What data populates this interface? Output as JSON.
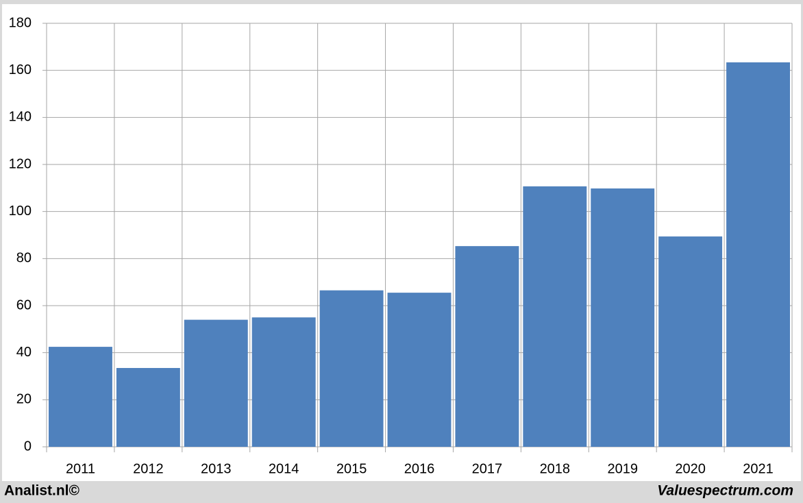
{
  "chart_data": {
    "type": "bar",
    "categories": [
      "2011",
      "2012",
      "2013",
      "2014",
      "2015",
      "2016",
      "2017",
      "2018",
      "2019",
      "2020",
      "2021"
    ],
    "values": [
      42.5,
      33.5,
      54,
      55,
      66.5,
      65.5,
      85.3,
      110.7,
      109.8,
      89.4,
      163.4
    ],
    "color": "#4f81bd",
    "ylim": [
      0,
      180
    ],
    "yticks": [
      0,
      20,
      40,
      60,
      80,
      100,
      120,
      140,
      160,
      180
    ],
    "grid": true,
    "footer_left": "Analist.nl©",
    "footer_right": "Valuespectrum.com"
  }
}
